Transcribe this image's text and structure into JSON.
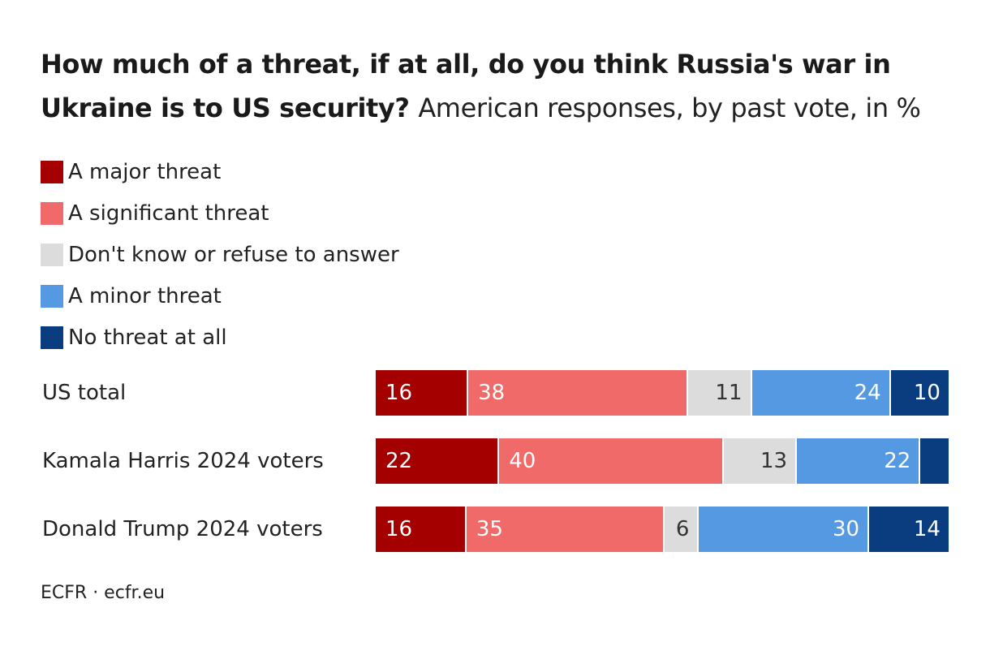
{
  "title_bold": "How much of a threat, if at all, do you think Russia's war in Ukraine is to US security?",
  "title_light": "American responses, by past vote, in %",
  "source": "ECFR · ecfr.eu",
  "chart_data": {
    "type": "bar",
    "orientation": "horizontal",
    "stacked": true,
    "xlim": [
      0,
      100
    ],
    "categories": [
      "US total",
      "Kamala Harris 2024 voters",
      "Donald Trump 2024 voters"
    ],
    "series": [
      {
        "name": "A major threat",
        "color": "#a50000",
        "text_color": "#ffffff",
        "align": "left",
        "values": [
          16,
          22,
          16
        ],
        "labels": [
          "16",
          "22",
          "16"
        ]
      },
      {
        "name": "A significant threat",
        "color": "#f06a6a",
        "text_color": "#ffffff",
        "align": "left",
        "values": [
          38,
          40,
          35
        ],
        "labels": [
          "38",
          "40",
          "35"
        ]
      },
      {
        "name": "Don't know or refuse to answer",
        "color": "#dcdcdc",
        "text_color": "#333333",
        "align": "right",
        "values": [
          11,
          13,
          6
        ],
        "labels": [
          "11",
          "13",
          "6"
        ]
      },
      {
        "name": "A minor threat",
        "color": "#5599e3",
        "text_color": "#ffffff",
        "align": "right",
        "values": [
          24,
          22,
          30
        ],
        "labels": [
          "24",
          "22",
          "30"
        ]
      },
      {
        "name": "No threat at all",
        "color": "#0a3d80",
        "text_color": "#ffffff",
        "align": "right",
        "values": [
          10,
          5,
          14
        ],
        "labels": [
          "10",
          "",
          "14"
        ]
      }
    ]
  }
}
